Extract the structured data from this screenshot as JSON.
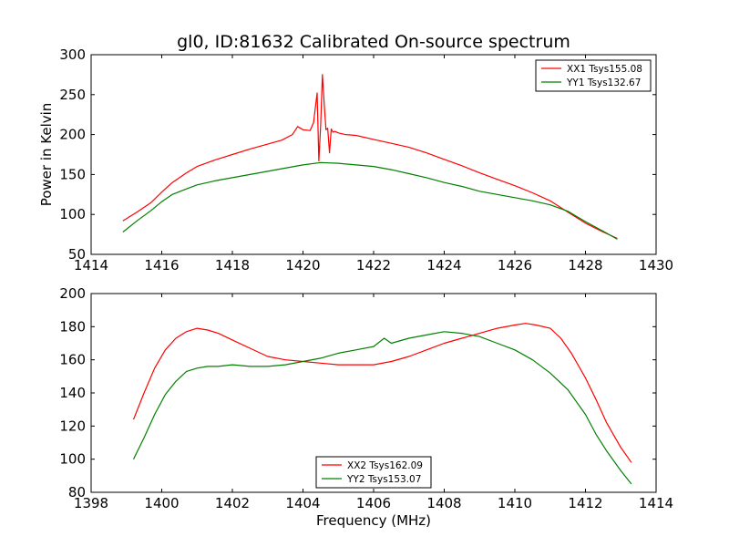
{
  "figure": {
    "title": "gl0, ID:81632 Calibrated On-source spectrum",
    "background": "#ffffff"
  },
  "chart_data": [
    {
      "type": "line",
      "title": "gl0, ID:81632 Calibrated On-source spectrum",
      "xlabel": "",
      "ylabel": "Power in Kelvin",
      "xlim": [
        1414,
        1430
      ],
      "ylim": [
        50,
        300
      ],
      "xticks": [
        1414,
        1416,
        1418,
        1420,
        1422,
        1424,
        1426,
        1428,
        1430
      ],
      "yticks": [
        50,
        100,
        150,
        200,
        250,
        300
      ],
      "legend_position": "top-right",
      "grid": false,
      "series": [
        {
          "name": "XX1 Tsys155.08",
          "color": "#ff0000",
          "x": [
            1414.9,
            1415.3,
            1415.7,
            1416.0,
            1416.3,
            1416.7,
            1417.0,
            1417.5,
            1418.0,
            1418.5,
            1419.0,
            1419.4,
            1419.7,
            1419.85,
            1420.0,
            1420.2,
            1420.3,
            1420.4,
            1420.45,
            1420.5,
            1420.55,
            1420.6,
            1420.65,
            1420.7,
            1420.75,
            1420.8,
            1420.85,
            1420.9,
            1421.0,
            1421.2,
            1421.5,
            1422.0,
            1422.5,
            1423.0,
            1423.5,
            1424.0,
            1424.5,
            1425.0,
            1425.5,
            1426.0,
            1426.5,
            1427.0,
            1427.5,
            1428.0,
            1428.5,
            1428.9
          ],
          "y": [
            92,
            103,
            115,
            128,
            140,
            152,
            160,
            168,
            175,
            182,
            188,
            193,
            200,
            210,
            206,
            205,
            215,
            252,
            167,
            212,
            275,
            240,
            206,
            208,
            177,
            207,
            203,
            204,
            202,
            200,
            199,
            194,
            189,
            184,
            177,
            169,
            161,
            152,
            144,
            136,
            127,
            117,
            103,
            89,
            78,
            70
          ]
        },
        {
          "name": "YY1 Tsys132.67",
          "color": "#008000",
          "x": [
            1414.9,
            1415.3,
            1415.7,
            1416.0,
            1416.3,
            1416.7,
            1417.0,
            1417.5,
            1418.0,
            1418.5,
            1419.0,
            1419.5,
            1420.0,
            1420.5,
            1421.0,
            1421.5,
            1422.0,
            1422.5,
            1423.0,
            1423.5,
            1424.0,
            1424.5,
            1425.0,
            1425.5,
            1426.0,
            1426.5,
            1427.0,
            1427.5,
            1428.0,
            1428.5,
            1428.9
          ],
          "y": [
            78,
            92,
            105,
            116,
            125,
            132,
            137,
            142,
            146,
            150,
            154,
            158,
            162,
            165,
            164,
            162,
            160,
            156,
            151,
            146,
            140,
            135,
            129,
            125,
            121,
            117,
            112,
            104,
            91,
            79,
            69
          ]
        }
      ]
    },
    {
      "type": "line",
      "title": "",
      "xlabel": "Frequency (MHz)",
      "ylabel": "",
      "xlim": [
        1398,
        1414
      ],
      "ylim": [
        80,
        200
      ],
      "xticks": [
        1398,
        1400,
        1402,
        1404,
        1406,
        1408,
        1410,
        1412,
        1414
      ],
      "yticks": [
        80,
        100,
        120,
        140,
        160,
        180,
        200
      ],
      "legend_position": "bottom-center",
      "grid": false,
      "series": [
        {
          "name": "XX2 Tsys162.09",
          "color": "#ff0000",
          "x": [
            1399.2,
            1399.5,
            1399.8,
            1400.1,
            1400.4,
            1400.7,
            1401.0,
            1401.3,
            1401.6,
            1402.0,
            1402.5,
            1403.0,
            1403.5,
            1404.0,
            1404.5,
            1405.0,
            1405.5,
            1406.0,
            1406.5,
            1407.0,
            1407.5,
            1408.0,
            1408.5,
            1409.0,
            1409.5,
            1410.0,
            1410.3,
            1410.6,
            1411.0,
            1411.3,
            1411.6,
            1412.0,
            1412.3,
            1412.6,
            1413.0,
            1413.3
          ],
          "y": [
            124,
            140,
            155,
            166,
            173,
            177,
            179,
            178,
            176,
            172,
            167,
            162,
            160,
            159,
            158,
            157,
            157,
            157,
            159,
            162,
            166,
            170,
            173,
            176,
            179,
            181,
            182,
            181,
            179,
            173,
            164,
            149,
            136,
            122,
            107,
            98
          ]
        },
        {
          "name": "YY2 Tsys153.07",
          "color": "#008000",
          "x": [
            1399.2,
            1399.5,
            1399.8,
            1400.1,
            1400.4,
            1400.7,
            1401.0,
            1401.3,
            1401.6,
            1402.0,
            1402.5,
            1403.0,
            1403.5,
            1404.0,
            1404.5,
            1405.0,
            1405.5,
            1406.0,
            1406.3,
            1406.5,
            1407.0,
            1407.5,
            1408.0,
            1408.5,
            1409.0,
            1409.5,
            1410.0,
            1410.5,
            1411.0,
            1411.5,
            1412.0,
            1412.3,
            1412.6,
            1413.0,
            1413.3
          ],
          "y": [
            100,
            113,
            127,
            139,
            147,
            153,
            155,
            156,
            156,
            157,
            156,
            156,
            157,
            159,
            161,
            164,
            166,
            168,
            173,
            170,
            173,
            175,
            177,
            176,
            174,
            170,
            166,
            160,
            152,
            142,
            127,
            115,
            105,
            93,
            85
          ]
        }
      ]
    }
  ]
}
